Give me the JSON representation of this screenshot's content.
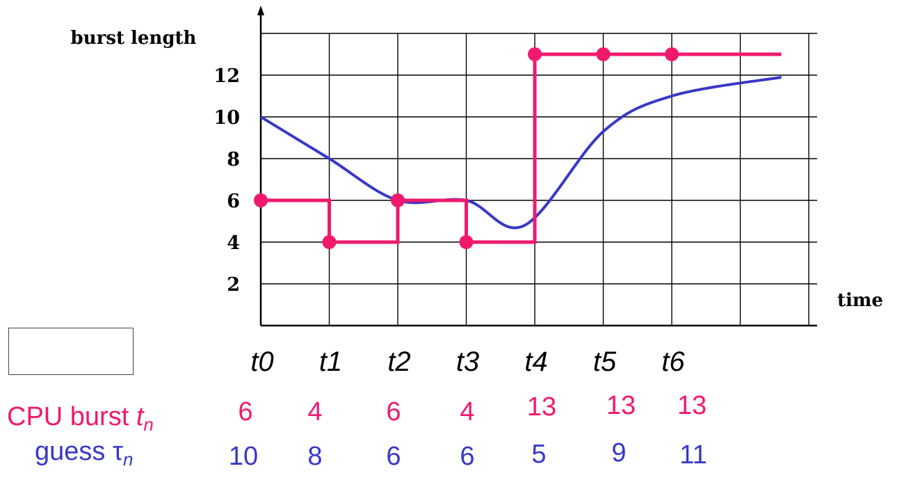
{
  "colors": {
    "burst": "#f0196e",
    "guess": "#3838c8",
    "grid": "#000000"
  },
  "chart_data": {
    "type": "line",
    "ylabel": "burst length",
    "xlabel": "time",
    "ylim": [
      0,
      14
    ],
    "xlim": [
      0,
      8
    ],
    "yticks": [
      "2",
      "4",
      "6",
      "8",
      "10",
      "12"
    ],
    "ytick_values": [
      2,
      4,
      6,
      8,
      10,
      12
    ],
    "x_categories": [
      "t0",
      "t1",
      "t2",
      "t3",
      "t4",
      "t5",
      "t6"
    ],
    "x_positions": [
      0,
      1,
      2,
      3,
      4,
      5,
      6
    ],
    "grid": true,
    "series": [
      {
        "style": "step-with-markers",
        "x": [
          0,
          1,
          2,
          3,
          4,
          5,
          6
        ],
        "y": [
          6,
          4,
          6,
          4,
          13,
          13,
          13
        ],
        "extends_to_x": 7.6
      },
      {
        "style": "smooth-curve",
        "x": [
          0,
          1,
          2,
          3,
          3.85,
          5,
          6,
          7.6
        ],
        "y": [
          10,
          8,
          6,
          6,
          4.8,
          9.3,
          11,
          11.9
        ]
      }
    ]
  },
  "table": {
    "burst_row": {
      "label_main": "CPU burst",
      "label_var": "t",
      "label_sub": "n",
      "values": [
        "6",
        "4",
        "6",
        "4",
        "13",
        "13",
        "13"
      ]
    },
    "guess_row": {
      "label_main": "guess",
      "label_var": "τ",
      "label_sub": "n",
      "values": [
        "10",
        "8",
        "6",
        "6",
        "5",
        "9",
        "11"
      ]
    }
  }
}
